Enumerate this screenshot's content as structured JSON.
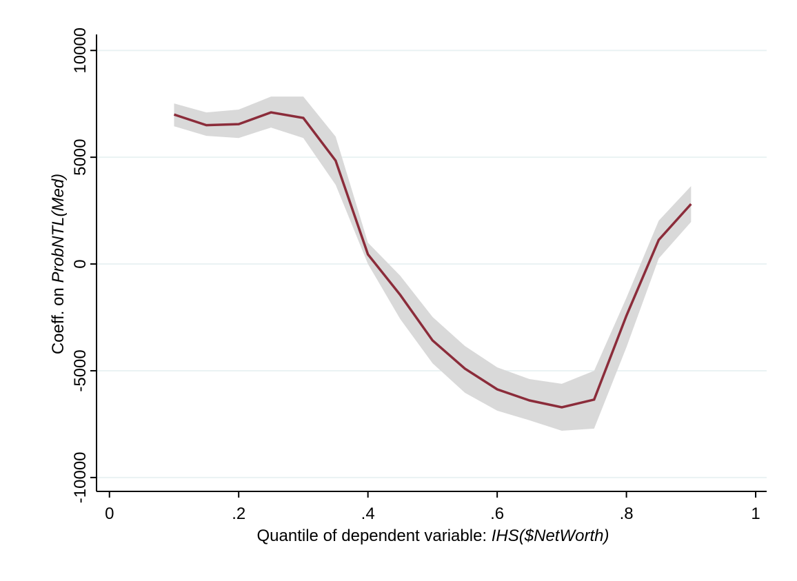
{
  "chart_data": {
    "type": "line",
    "x": [
      0.1,
      0.15,
      0.2,
      0.25,
      0.3,
      0.35,
      0.4,
      0.45,
      0.5,
      0.55,
      0.6,
      0.65,
      0.7,
      0.75,
      0.8,
      0.85,
      0.9
    ],
    "values": [
      7000,
      6500,
      6550,
      7100,
      6840,
      4840,
      450,
      -1450,
      -3580,
      -4900,
      -5870,
      -6390,
      -6710,
      -6350,
      -2420,
      1130,
      2810
    ],
    "upper": [
      7520,
      7100,
      7230,
      7840,
      7840,
      5970,
      1000,
      -550,
      -2480,
      -3840,
      -4840,
      -5390,
      -5610,
      -5000,
      -1580,
      2030,
      3650
    ],
    "lower": [
      6450,
      6000,
      5900,
      6390,
      5900,
      3710,
      0,
      -2580,
      -4650,
      -6030,
      -6870,
      -7320,
      -7810,
      -7710,
      -3900,
      260,
      1970
    ],
    "color": "#8b2c3a",
    "band_color": "#d9d9d9",
    "xlim": [
      -0.02,
      1.017
    ],
    "ylim": [
      -10650,
      10750
    ],
    "xticks": [
      0,
      {
        "value": 0.2,
        "label": ".2"
      },
      {
        "value": 0.4,
        "label": ".4"
      },
      {
        "value": 0.6,
        "label": ".6"
      },
      {
        "value": 0.8,
        "label": ".8"
      },
      1
    ],
    "yticks": [
      -10000,
      -5000,
      0,
      5000,
      10000
    ],
    "grid": true,
    "xlabel": {
      "text": "Quantile of dependent variable: ",
      "italic": "IHS($NetWorth)"
    },
    "ylabel": {
      "text": "Coeff. on ",
      "italic": "ProbNTL(Med)"
    }
  }
}
